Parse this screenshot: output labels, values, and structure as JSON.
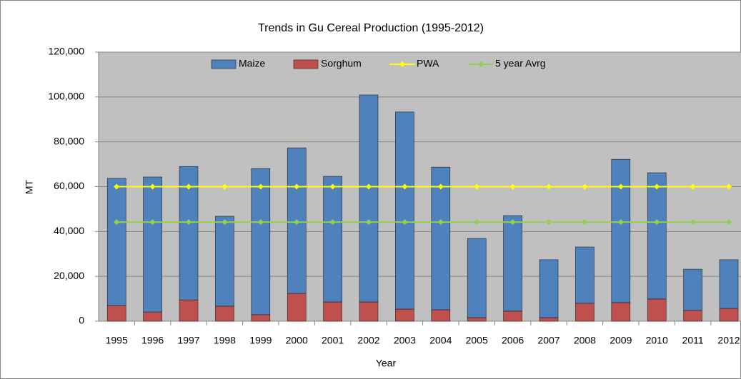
{
  "chart_data": {
    "type": "stacked_bar_line",
    "title": "Trends in Gu Cereal Production  (1995-2012)",
    "x_label": "Year",
    "y_label": "MT",
    "categories": [
      "1995",
      "1996",
      "1997",
      "1998",
      "1999",
      "2000",
      "2001",
      "2002",
      "2003",
      "2004",
      "2005",
      "2006",
      "2007",
      "2008",
      "2009",
      "2010",
      "2011",
      "2012"
    ],
    "series": [
      {
        "name": "Maize",
        "kind": "bar",
        "color": "#4f81bd",
        "values": [
          56700,
          60200,
          59500,
          40100,
          65200,
          64900,
          56000,
          92300,
          87900,
          63600,
          35300,
          42600,
          25800,
          25100,
          63900,
          56300,
          18400,
          21700
        ]
      },
      {
        "name": "Sorghum",
        "kind": "bar",
        "color": "#c0504d",
        "values": [
          7000,
          4100,
          9500,
          6700,
          2900,
          12400,
          8600,
          8600,
          5400,
          5100,
          1600,
          4500,
          1600,
          8000,
          8300,
          9900,
          4800,
          5700
        ]
      },
      {
        "name": "PWA",
        "kind": "line",
        "color": "#ffff00",
        "values": [
          60000,
          60000,
          60000,
          60000,
          60000,
          60000,
          60000,
          60000,
          60000,
          60000,
          60000,
          60000,
          60000,
          60000,
          60000,
          60000,
          60000,
          60000
        ]
      },
      {
        "name": "5 year Avrg",
        "kind": "line",
        "color": "#92d050",
        "values": [
          44200,
          44200,
          44200,
          44200,
          44200,
          44200,
          44200,
          44200,
          44200,
          44200,
          44200,
          44200,
          44200,
          44200,
          44200,
          44200,
          44200,
          44200
        ]
      }
    ],
    "ylim": [
      0,
      120000
    ],
    "yticks": [
      0,
      {
        "value": 20000,
        "label": "20,000"
      },
      {
        "value": 40000,
        "label": "40,000"
      },
      {
        "value": 60000,
        "label": "60,000"
      },
      {
        "value": 80000,
        "label": "80,000"
      },
      {
        "value": 100000,
        "label": "100,000"
      },
      {
        "value": 120000,
        "label": "120,000"
      }
    ],
    "grid": true,
    "legend": "top"
  }
}
